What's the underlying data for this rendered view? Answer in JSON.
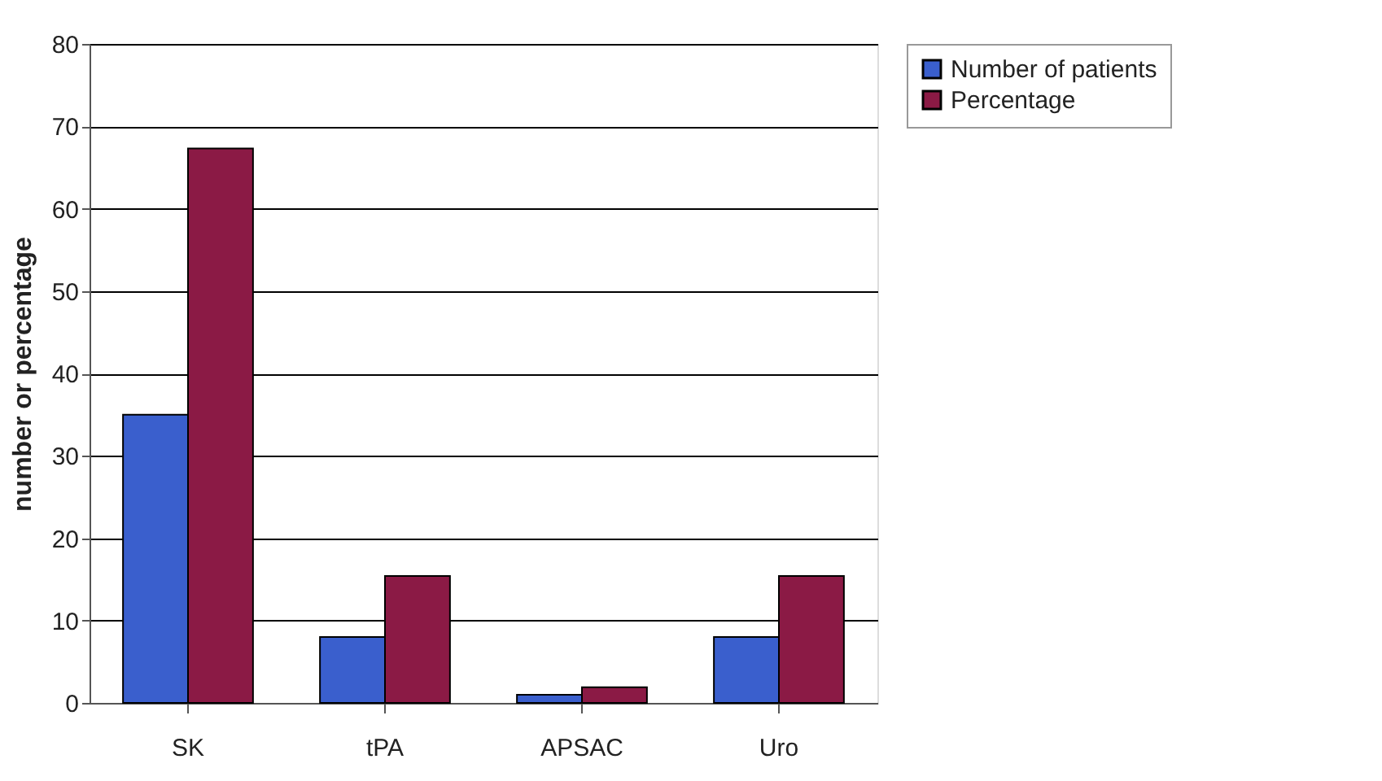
{
  "chart_data": {
    "type": "bar",
    "ylabel": "number or percentage",
    "categories": [
      "SK",
      "tPA",
      "APSAC",
      "Uro"
    ],
    "series": [
      {
        "name": "Number of patients",
        "color": "#3a5fcd",
        "values": [
          35,
          8,
          1,
          8
        ]
      },
      {
        "name": "Percentage",
        "color": "#8b1a45",
        "values": [
          67.3,
          15.4,
          1.9,
          15.4
        ]
      }
    ],
    "ylim": [
      0,
      80
    ],
    "yticks": [
      0,
      10,
      20,
      30,
      40,
      50,
      60,
      70,
      80
    ],
    "grid": "y",
    "legend": "right"
  }
}
